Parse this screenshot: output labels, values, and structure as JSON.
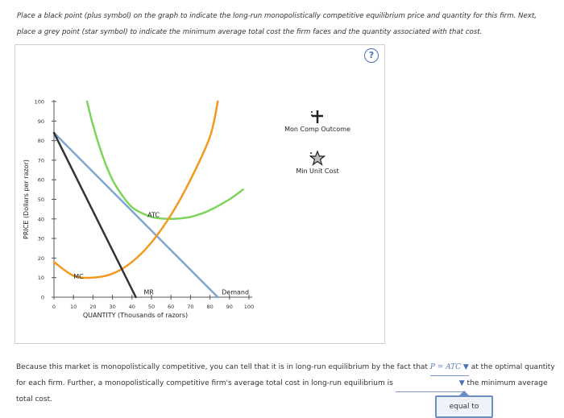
{
  "instructions": {
    "line1": "Place a black point (plus symbol) on the graph to indicate the long-run monopolistically competitive equilibrium price and quantity for this firm. Next,",
    "line2": "place a grey point (star symbol) to indicate the minimum average total cost the firm faces and the quantity associated with that cost."
  },
  "help_icon": {
    "glyph": "?",
    "name": "help-icon"
  },
  "tools": {
    "mon_comp": {
      "label": "Mon Comp Outcome",
      "icon": "plus-point-icon",
      "color": "#222222"
    },
    "min_cost": {
      "label": "Min Unit Cost",
      "icon": "star-point-icon",
      "color": "#9a9a9a"
    }
  },
  "colors": {
    "mc": "#f39a1e",
    "atc": "#7fd45b",
    "demand": "#7ea6cf",
    "mr": "#333333",
    "accent": "#4a6fb0"
  },
  "chart_data": {
    "type": "line",
    "xlabel": "QUANTITY (Thousands of razors)",
    "ylabel": "PRICE (Dollars per razor)",
    "xlim": [
      0,
      100
    ],
    "ylim": [
      0,
      100
    ],
    "xticks": [
      0,
      10,
      20,
      30,
      40,
      50,
      60,
      70,
      80,
      90,
      100
    ],
    "yticks": [
      0,
      10,
      20,
      30,
      40,
      50,
      60,
      70,
      80,
      90,
      100
    ],
    "series": [
      {
        "name": "Demand",
        "label": "Demand",
        "key": "demand",
        "x": [
          0,
          84
        ],
        "y": [
          84,
          0
        ]
      },
      {
        "name": "MR",
        "label": "MR",
        "key": "mr",
        "x": [
          0,
          42
        ],
        "y": [
          84,
          0
        ]
      },
      {
        "name": "MC",
        "label": "MC",
        "key": "mc",
        "x": [
          0,
          10,
          20,
          30,
          40,
          50,
          60,
          70,
          80,
          84
        ],
        "y": [
          18,
          11,
          10,
          12,
          18,
          28,
          42,
          60,
          82,
          100
        ]
      },
      {
        "name": "ATC",
        "label": "ATC",
        "key": "atc",
        "x": [
          17,
          20,
          25,
          30,
          35,
          40,
          45,
          50,
          55,
          60,
          65,
          70,
          75,
          80,
          90,
          97
        ],
        "y": [
          100,
          88,
          72,
          60,
          52,
          46,
          43,
          41,
          40.2,
          40,
          40.3,
          41,
          42.5,
          44.5,
          50,
          55
        ]
      }
    ]
  },
  "question": {
    "text1": "Because this market is monopolistically competitive, you can tell that it is in long-run equilibrium by the fact that ",
    "answer1": "P = ATC",
    "text2": " at the optimal quantity for each firm. Further, a monopolistically competitive firm's average total cost in long-run equilibrium is ",
    "answer2": "",
    "text3": " the minimum average total cost.",
    "dropdown_option": "equal to"
  }
}
